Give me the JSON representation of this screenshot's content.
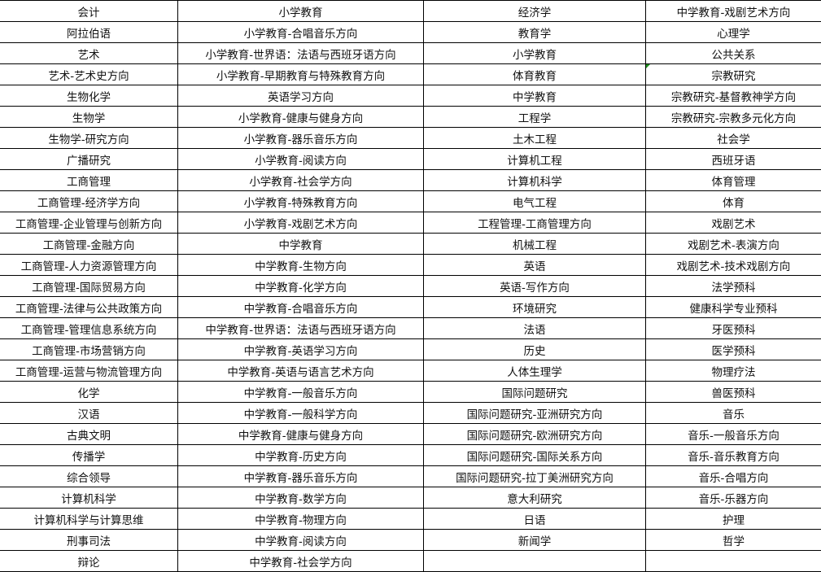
{
  "sheet": {
    "rows": [
      [
        "会计",
        "小学教育",
        "经济学",
        "中学教育-戏剧艺术方向"
      ],
      [
        "阿拉伯语",
        "小学教育-合唱音乐方向",
        "教育学",
        "心理学"
      ],
      [
        "艺术",
        "小学教育-世界语：法语与西班牙语方向",
        "小学教育",
        "公共关系"
      ],
      [
        "艺术-艺术史方向",
        "小学教育-早期教育与特殊教育方向",
        "体育教育",
        "宗教研究"
      ],
      [
        "生物化学",
        "英语学习方向",
        "中学教育",
        "宗教研究-基督教神学方向"
      ],
      [
        "生物学",
        "小学教育-健康与健身方向",
        "工程学",
        "宗教研究-宗教多元化方向"
      ],
      [
        "生物学-研究方向",
        "小学教育-器乐音乐方向",
        "土木工程",
        "社会学"
      ],
      [
        "广播研究",
        "小学教育-阅读方向",
        "计算机工程",
        "西班牙语"
      ],
      [
        "工商管理",
        "小学教育-社会学方向",
        "计算机科学",
        "体育管理"
      ],
      [
        "工商管理-经济学方向",
        "小学教育-特殊教育方向",
        "电气工程",
        "体育"
      ],
      [
        "工商管理-企业管理与创新方向",
        "小学教育-戏剧艺术方向",
        "工程管理-工商管理方向",
        "戏剧艺术"
      ],
      [
        "工商管理-金融方向",
        "中学教育",
        "机械工程",
        "戏剧艺术-表演方向"
      ],
      [
        "工商管理-人力资源管理方向",
        "中学教育-生物方向",
        "英语",
        "戏剧艺术-技术戏剧方向"
      ],
      [
        "工商管理-国际贸易方向",
        "中学教育-化学方向",
        "英语-写作方向",
        "法学预科"
      ],
      [
        "工商管理-法律与公共政策方向",
        "中学教育-合唱音乐方向",
        "环境研究",
        "健康科学专业预科"
      ],
      [
        "工商管理-管理信息系统方向",
        "中学教育-世界语：法语与西班牙语方向",
        "法语",
        "牙医预科"
      ],
      [
        "工商管理-市场营销方向",
        "中学教育-英语学习方向",
        "历史",
        "医学预科"
      ],
      [
        "工商管理-运营与物流管理方向",
        "中学教育-英语与语言艺术方向",
        "人体生理学",
        "物理疗法"
      ],
      [
        "化学",
        "中学教育-一般音乐方向",
        "国际问题研究",
        "兽医预科"
      ],
      [
        "汉语",
        "中学教育-一般科学方向",
        "国际问题研究-亚洲研究方向",
        "音乐"
      ],
      [
        "古典文明",
        "中学教育-健康与健身方向",
        "国际问题研究-欧洲研究方向",
        "音乐-一般音乐方向"
      ],
      [
        "传播学",
        "中学教育-历史方向",
        "国际问题研究-国际关系方向",
        "音乐-音乐教育方向"
      ],
      [
        "综合领导",
        "中学教育-器乐音乐方向",
        "国际问题研究-拉丁美洲研究方向",
        "音乐-合唱方向"
      ],
      [
        "计算机科学",
        "中学教育-数学方向",
        "意大利研究",
        "音乐-乐器方向"
      ],
      [
        "计算机科学与计算思维",
        "中学教育-物理方向",
        "日语",
        "护理"
      ],
      [
        "刑事司法",
        "中学教育-阅读方向",
        "新闻学",
        "哲学"
      ],
      [
        "辩论",
        "中学教育-社会学方向",
        "",
        ""
      ]
    ],
    "comment_indicator_color": "#1e8e1e"
  }
}
